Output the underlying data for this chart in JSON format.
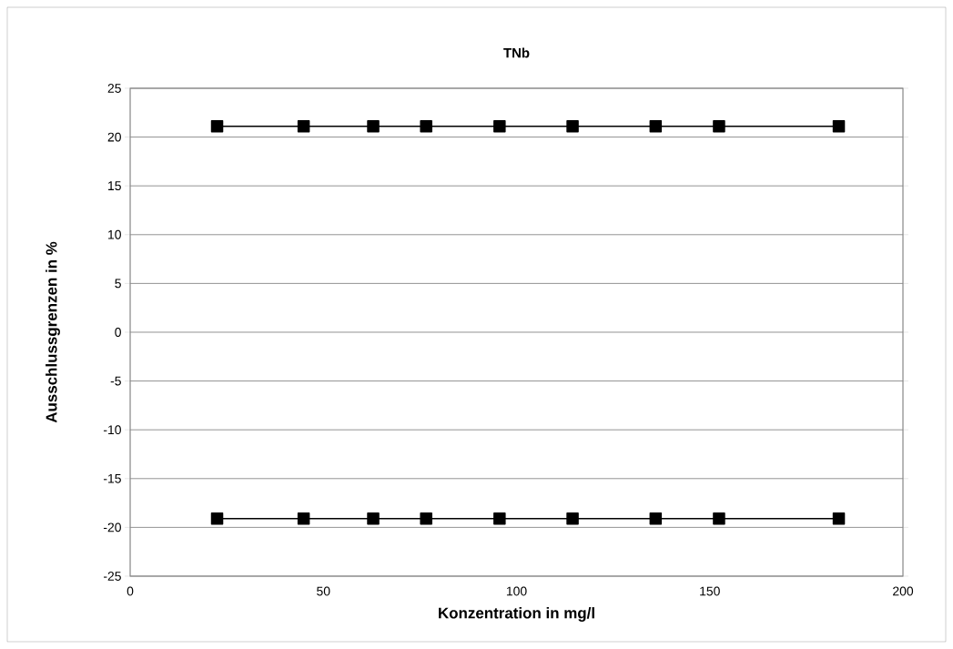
{
  "chart_data": {
    "type": "line",
    "title": "TNb",
    "xlabel": "Konzentration in mg/l",
    "ylabel": "Ausschlussgrenzen in %",
    "x": [
      22.5,
      44.9,
      62.9,
      76.6,
      95.6,
      114.5,
      136.0,
      152.4,
      183.4
    ],
    "series": [
      {
        "color": "#000000",
        "values": [
          21.1,
          21.1,
          21.1,
          21.1,
          21.1,
          21.1,
          21.1,
          21.1,
          21.1
        ]
      },
      {
        "color": "#000000",
        "values": [
          -19.1,
          -19.1,
          -19.1,
          -19.1,
          -19.1,
          -19.1,
          -19.1,
          -19.1,
          -19.1
        ]
      }
    ],
    "xlim": [
      0,
      200
    ],
    "xticks": [
      0,
      50,
      100,
      150,
      200
    ],
    "ylim": [
      -25,
      25
    ],
    "yticks": [
      25,
      20,
      15,
      10,
      5,
      0,
      -5,
      -10,
      -15,
      -20,
      -25
    ],
    "grid": "y",
    "marker": "square",
    "line_style": "solid"
  }
}
